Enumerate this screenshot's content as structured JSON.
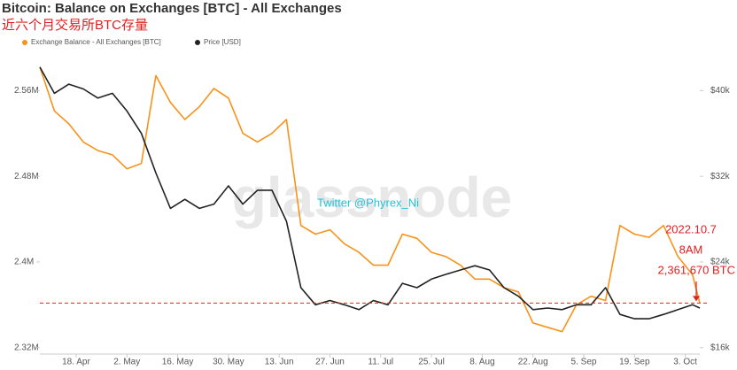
{
  "chart_data": {
    "type": "line",
    "title": "Bitcoin: Balance on Exchanges [BTC] - All Exchanges",
    "subtitle": "近六个月交易所BTC存量",
    "watermark": "glassnode",
    "annotations": [
      "Twitter @Phyrex_Ni",
      "2022.10.7",
      "8AM",
      "2,361,670 BTC"
    ],
    "x": [
      98,
      102,
      106,
      110,
      114,
      118,
      122,
      126,
      130,
      134,
      138,
      142,
      146,
      150,
      154,
      158,
      162,
      166,
      170,
      174,
      178,
      182,
      186,
      190,
      194,
      198,
      202,
      206,
      210,
      214,
      218,
      222,
      226,
      230,
      234,
      238,
      242,
      246,
      250,
      254,
      258,
      262,
      266,
      270,
      274,
      278,
      280
    ],
    "xlim": [
      98,
      280
    ],
    "xticks": [
      {
        "value": 108,
        "label": "18. Apr"
      },
      {
        "value": 122,
        "label": "2. May"
      },
      {
        "value": 136,
        "label": "16. May"
      },
      {
        "value": 150,
        "label": "30. May"
      },
      {
        "value": 164,
        "label": "13. Jun"
      },
      {
        "value": 178,
        "label": "27. Jun"
      },
      {
        "value": 192,
        "label": "11. Jul"
      },
      {
        "value": 206,
        "label": "25. Jul"
      },
      {
        "value": 220,
        "label": "8. Aug"
      },
      {
        "value": 234,
        "label": "22. Aug"
      },
      {
        "value": 248,
        "label": "5. Sep"
      },
      {
        "value": 262,
        "label": "19. Sep"
      },
      {
        "value": 276,
        "label": "3. Oct"
      }
    ],
    "ylim": [
      2314000,
      2595000
    ],
    "yticks": [
      {
        "value": 2320000,
        "label": "2.32M"
      },
      {
        "value": 2400000,
        "label": "2.4M"
      },
      {
        "value": 2480000,
        "label": "2.48M"
      },
      {
        "value": 2560000,
        "label": "2.56M"
      }
    ],
    "y2lim": [
      15400,
      43500
    ],
    "y2ticks": [
      {
        "value": 16000,
        "label": "$16k"
      },
      {
        "value": 24000,
        "label": "$24k"
      },
      {
        "value": 32000,
        "label": "$32k"
      },
      {
        "value": 40000,
        "label": "$40k"
      }
    ],
    "series": [
      {
        "name": "Exchange Balance - All Exchanges [BTC]",
        "color": "#f7931a",
        "values": [
          2582000,
          2541000,
          2529000,
          2512000,
          2504000,
          2500000,
          2487000,
          2492000,
          2574000,
          2549000,
          2533000,
          2545000,
          2562000,
          2553000,
          2520000,
          2512000,
          2520000,
          2533000,
          2434000,
          2426000,
          2430000,
          2417000,
          2409000,
          2397000,
          2397000,
          2426000,
          2422000,
          2409000,
          2405000,
          2397000,
          2384000,
          2384000,
          2376000,
          2372000,
          2343000,
          2339000,
          2335000,
          2360000,
          2368000,
          2364000,
          2434000,
          2426000,
          2423000,
          2434000,
          2405000,
          2388000,
          2361670
        ]
      },
      {
        "name": "Price [USD]",
        "color": "#222222",
        "axis": "y2",
        "values": [
          42200,
          39750,
          40600,
          40150,
          39300,
          39750,
          38100,
          36000,
          32300,
          29000,
          29850,
          29000,
          29400,
          31100,
          29400,
          30700,
          30700,
          27800,
          21600,
          20000,
          20400,
          20000,
          19550,
          20400,
          20000,
          22000,
          21600,
          22400,
          22850,
          23250,
          23650,
          23250,
          21600,
          20800,
          19550,
          19700,
          19550,
          20000,
          20000,
          21600,
          19100,
          18700,
          18700,
          19100,
          19550,
          20000,
          19700
        ]
      }
    ]
  }
}
